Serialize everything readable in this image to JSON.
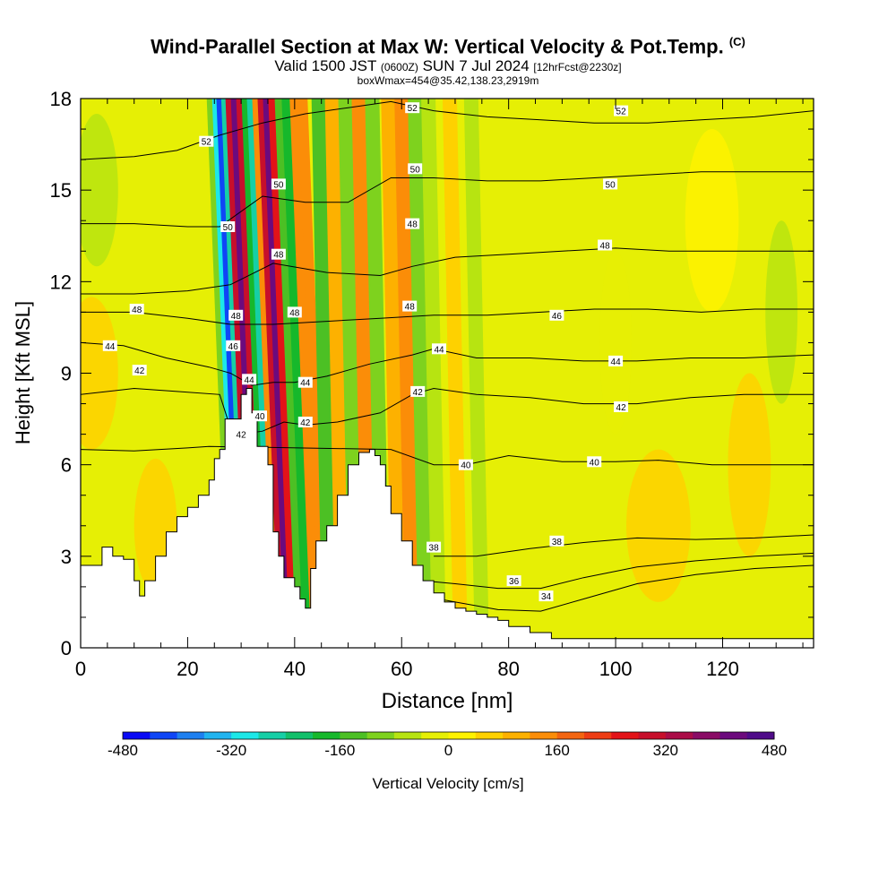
{
  "header": {
    "title": "Wind-Parallel Section at Max W: Vertical Velocity & Pot.Temp.",
    "title_mark": "(C)",
    "subtitle_main_a": "Valid 1500 JST",
    "subtitle_small_a": "(0600Z)",
    "subtitle_main_b": "SUN 7 Jul 2024",
    "subtitle_small_b": "[12hrFcst@2230z]",
    "subtitle2": "boxWmax=454@35.42,138.23,2919m"
  },
  "chart_data": {
    "type": "heatmap",
    "xlabel": "Distance [nm]",
    "ylabel": "Height [Kft MSL]",
    "xlim": [
      0,
      137
    ],
    "ylim": [
      0,
      18
    ],
    "x_ticks": [
      "0",
      "20",
      "40",
      "60",
      "80",
      "100",
      "120"
    ],
    "x_tick_values": [
      0,
      20,
      40,
      60,
      80,
      100,
      120
    ],
    "y_ticks": [
      "0",
      "3",
      "6",
      "9",
      "12",
      "15",
      "18"
    ],
    "y_tick_values": [
      0,
      3,
      6,
      9,
      12,
      15,
      18
    ],
    "background_field": "Vertical Velocity",
    "contour_field": "Potential Temperature",
    "terrain_profile": {
      "x": [
        0,
        4,
        6,
        8,
        10,
        11,
        12,
        14,
        16,
        18,
        20,
        22,
        24,
        25,
        26,
        27,
        28,
        30,
        31,
        32,
        33,
        34,
        35,
        36,
        37,
        38,
        40,
        41,
        42,
        43,
        44,
        46,
        48,
        50,
        52,
        54,
        55,
        56,
        57,
        58,
        60,
        62,
        64,
        66,
        68,
        70,
        72,
        74,
        76,
        78,
        80,
        84,
        88,
        92,
        100,
        110,
        120,
        130,
        137
      ],
      "height_kft": [
        2.7,
        3.3,
        3.0,
        2.9,
        2.2,
        1.7,
        2.2,
        3.0,
        3.8,
        4.3,
        4.6,
        5.0,
        5.5,
        6.2,
        6.5,
        7.5,
        7.5,
        8.3,
        8.5,
        7.7,
        6.6,
        6.6,
        6.0,
        3.8,
        3.0,
        2.3,
        2.0,
        1.6,
        1.3,
        2.6,
        3.5,
        4.0,
        5.0,
        6.0,
        6.4,
        6.5,
        6.3,
        6.0,
        5.3,
        4.4,
        3.5,
        2.7,
        2.2,
        1.8,
        1.5,
        1.3,
        1.2,
        1.1,
        1.0,
        0.9,
        0.7,
        0.5,
        0.3,
        0.3,
        0.3,
        0.3,
        0.3,
        0.3,
        0.3
      ]
    },
    "w_columns": [
      {
        "x": 26.5,
        "cm_s": -100
      },
      {
        "x": 27.5,
        "cm_s": -300
      },
      {
        "x": 28.3,
        "cm_s": -420
      },
      {
        "x": 29.2,
        "cm_s": -280
      },
      {
        "x": 30.0,
        "cm_s": 300
      },
      {
        "x": 31.0,
        "cm_s": 420
      },
      {
        "x": 32.0,
        "cm_s": 280
      },
      {
        "x": 33.0,
        "cm_s": -200
      },
      {
        "x": 34.0,
        "cm_s": -260
      },
      {
        "x": 35.0,
        "cm_s": 150
      },
      {
        "x": 36.0,
        "cm_s": 300
      },
      {
        "x": 37.0,
        "cm_s": 420
      },
      {
        "x": 38.0,
        "cm_s": 250
      },
      {
        "x": 39.2,
        "cm_s": -150
      },
      {
        "x": 40.5,
        "cm_s": -200
      },
      {
        "x": 42.0,
        "cm_s": 150
      },
      {
        "x": 43.5,
        "cm_s": 120
      },
      {
        "x": 45.5,
        "cm_s": -140
      },
      {
        "x": 48.0,
        "cm_s": 100
      },
      {
        "x": 50.5,
        "cm_s": -120
      },
      {
        "x": 53.0,
        "cm_s": 120
      },
      {
        "x": 55.5,
        "cm_s": -100
      },
      {
        "x": 58.5,
        "cm_s": 80
      },
      {
        "x": 61.0,
        "cm_s": 150
      },
      {
        "x": 63.5,
        "cm_s": -100
      },
      {
        "x": 66.0,
        "cm_s": -80
      },
      {
        "x": 70.0,
        "cm_s": 40
      },
      {
        "x": 74.0,
        "cm_s": -50
      }
    ],
    "colorbar": {
      "label": "Vertical Velocity [cm/s]",
      "min": -480,
      "max": 480,
      "tick_labels": [
        "-480",
        "-320",
        "-160",
        "0",
        "160",
        "320",
        "480"
      ],
      "tick_values": [
        -480,
        -320,
        -160,
        0,
        160,
        320,
        480
      ],
      "colors": [
        "#0a0af5",
        "#0f46f6",
        "#1e80f0",
        "#21b4ef",
        "#1ce8e8",
        "#16cfa6",
        "#12c06a",
        "#16b82b",
        "#4cc024",
        "#7ed21e",
        "#b7e411",
        "#e6ef05",
        "#fef200",
        "#fed100",
        "#fdb100",
        "#fb8d08",
        "#f36510",
        "#ee3d14",
        "#e31318",
        "#c70f2b",
        "#ab0c47",
        "#8a0b65",
        "#6c0a7d",
        "#4f0b89"
      ]
    },
    "contours": [
      {
        "level": 34,
        "label": "34",
        "pts": [
          [
            60,
            1.3
          ],
          [
            64,
            1.7
          ],
          [
            70,
            1.5
          ],
          [
            78,
            1.25
          ],
          [
            86,
            1.2
          ],
          [
            94,
            1.6
          ],
          [
            104,
            2.1
          ],
          [
            115,
            2.4
          ],
          [
            126,
            2.6
          ],
          [
            137,
            2.7
          ]
        ]
      },
      {
        "level": 36,
        "label": "36",
        "pts": [
          [
            64,
            2.2
          ],
          [
            70,
            2.1
          ],
          [
            78,
            1.95
          ],
          [
            86,
            1.95
          ],
          [
            94,
            2.3
          ],
          [
            104,
            2.65
          ],
          [
            115,
            2.85
          ],
          [
            126,
            3.0
          ],
          [
            137,
            3.1
          ]
        ]
      },
      {
        "level": 38,
        "label": "38",
        "pts": [
          [
            66,
            3.0
          ],
          [
            74,
            3.0
          ],
          [
            84,
            3.25
          ],
          [
            94,
            3.45
          ],
          [
            104,
            3.6
          ],
          [
            115,
            3.55
          ],
          [
            126,
            3.6
          ],
          [
            137,
            3.7
          ]
        ]
      },
      {
        "level": 40,
        "label": "40",
        "pts": [
          [
            0,
            6.5
          ],
          [
            10,
            6.45
          ],
          [
            20,
            6.55
          ],
          [
            24,
            6.6
          ],
          [
            58,
            6.5
          ],
          [
            66,
            6.0
          ],
          [
            72,
            6.0
          ],
          [
            80,
            6.3
          ],
          [
            90,
            6.1
          ],
          [
            100,
            6.1
          ],
          [
            108,
            6.15
          ],
          [
            118,
            6.0
          ],
          [
            128,
            6.0
          ],
          [
            137,
            6.0
          ]
        ]
      },
      {
        "level": 42,
        "label": "42",
        "pts": [
          [
            0,
            8.3
          ],
          [
            10,
            8.5
          ],
          [
            18,
            8.4
          ],
          [
            26,
            8.3
          ],
          [
            28,
            7.2
          ],
          [
            30,
            7.0
          ],
          [
            34,
            7.1
          ],
          [
            38,
            7.4
          ],
          [
            42,
            7.3
          ],
          [
            48,
            7.4
          ],
          [
            56,
            7.7
          ],
          [
            62,
            8.3
          ],
          [
            66,
            8.5
          ],
          [
            74,
            8.3
          ],
          [
            84,
            8.2
          ],
          [
            94,
            8.0
          ],
          [
            104,
            8.0
          ],
          [
            114,
            8.2
          ],
          [
            124,
            8.3
          ],
          [
            137,
            8.3
          ]
        ]
      },
      {
        "level": 44,
        "label": "44",
        "pts": [
          [
            0,
            10.0
          ],
          [
            8,
            9.9
          ],
          [
            16,
            9.5
          ],
          [
            24,
            9.2
          ],
          [
            28,
            9.0
          ],
          [
            32,
            8.6
          ],
          [
            36,
            8.7
          ],
          [
            40,
            8.7
          ],
          [
            46,
            8.9
          ],
          [
            54,
            9.3
          ],
          [
            62,
            9.6
          ],
          [
            66,
            9.8
          ],
          [
            74,
            9.5
          ],
          [
            84,
            9.5
          ],
          [
            94,
            9.4
          ],
          [
            104,
            9.4
          ],
          [
            114,
            9.5
          ],
          [
            124,
            9.5
          ],
          [
            137,
            9.6
          ]
        ]
      },
      {
        "level": 46,
        "label": "46",
        "pts": [
          [
            0,
            11.0
          ],
          [
            10,
            11.0
          ],
          [
            20,
            10.8
          ],
          [
            28,
            10.6
          ],
          [
            36,
            10.6
          ],
          [
            46,
            10.7
          ],
          [
            56,
            10.8
          ],
          [
            66,
            10.9
          ],
          [
            76,
            10.9
          ],
          [
            86,
            11.0
          ],
          [
            96,
            11.1
          ],
          [
            106,
            11.1
          ],
          [
            116,
            11.0
          ],
          [
            126,
            11.1
          ],
          [
            137,
            11.1
          ]
        ]
      },
      {
        "level": 48,
        "label": "48",
        "pts": [
          [
            0,
            11.6
          ],
          [
            10,
            11.6
          ],
          [
            20,
            11.7
          ],
          [
            28,
            11.9
          ],
          [
            36,
            12.6
          ],
          [
            46,
            12.3
          ],
          [
            56,
            12.2
          ],
          [
            62,
            12.5
          ],
          [
            70,
            12.8
          ],
          [
            80,
            12.9
          ],
          [
            90,
            13.0
          ],
          [
            100,
            13.1
          ],
          [
            110,
            13.0
          ],
          [
            120,
            13.0
          ],
          [
            137,
            13.0
          ]
        ]
      },
      {
        "level": 50,
        "label": "50",
        "pts": [
          [
            0,
            13.9
          ],
          [
            10,
            13.9
          ],
          [
            20,
            13.8
          ],
          [
            26,
            13.8
          ],
          [
            34,
            14.8
          ],
          [
            42,
            14.6
          ],
          [
            50,
            14.6
          ],
          [
            58,
            15.4
          ],
          [
            66,
            15.4
          ],
          [
            76,
            15.3
          ],
          [
            86,
            15.3
          ],
          [
            96,
            15.4
          ],
          [
            106,
            15.5
          ],
          [
            116,
            15.6
          ],
          [
            126,
            15.6
          ],
          [
            137,
            15.6
          ]
        ]
      },
      {
        "level": 52,
        "label": "52",
        "pts": [
          [
            0,
            16.0
          ],
          [
            10,
            16.1
          ],
          [
            18,
            16.3
          ],
          [
            26,
            16.8
          ],
          [
            34,
            17.2
          ],
          [
            42,
            17.5
          ],
          [
            50,
            17.7
          ],
          [
            58,
            17.9
          ],
          [
            66,
            17.6
          ],
          [
            76,
            17.4
          ],
          [
            86,
            17.3
          ],
          [
            96,
            17.2
          ],
          [
            106,
            17.2
          ],
          [
            116,
            17.3
          ],
          [
            126,
            17.4
          ],
          [
            137,
            17.6
          ]
        ]
      }
    ],
    "contour_labels": [
      {
        "text": "34",
        "x": 87,
        "y": 1.7
      },
      {
        "text": "36",
        "x": 81,
        "y": 2.2
      },
      {
        "text": "38",
        "x": 89,
        "y": 3.5
      },
      {
        "text": "38",
        "x": 66,
        "y": 3.3
      },
      {
        "text": "40",
        "x": 72,
        "y": 6.0
      },
      {
        "text": "40",
        "x": 96,
        "y": 6.1
      },
      {
        "text": "40",
        "x": 33.5,
        "y": 7.6
      },
      {
        "text": "42",
        "x": 30,
        "y": 7.0
      },
      {
        "text": "42",
        "x": 42,
        "y": 7.4
      },
      {
        "text": "42",
        "x": 63,
        "y": 8.4
      },
      {
        "text": "42",
        "x": 101,
        "y": 7.9
      },
      {
        "text": "42",
        "x": 11,
        "y": 9.1
      },
      {
        "text": "44",
        "x": 5.5,
        "y": 9.9
      },
      {
        "text": "44",
        "x": 31.5,
        "y": 8.8
      },
      {
        "text": "44",
        "x": 42,
        "y": 8.7
      },
      {
        "text": "44",
        "x": 67,
        "y": 9.8
      },
      {
        "text": "44",
        "x": 100,
        "y": 9.4
      },
      {
        "text": "46",
        "x": 28.5,
        "y": 9.9
      },
      {
        "text": "46",
        "x": 89,
        "y": 10.9
      },
      {
        "text": "48",
        "x": 10.5,
        "y": 11.1
      },
      {
        "text": "48",
        "x": 29,
        "y": 10.9
      },
      {
        "text": "48",
        "x": 40,
        "y": 11.0
      },
      {
        "text": "48",
        "x": 61.5,
        "y": 11.2
      },
      {
        "text": "48",
        "x": 98,
        "y": 13.2
      },
      {
        "text": "48",
        "x": 37,
        "y": 12.9
      },
      {
        "text": "48",
        "x": 62,
        "y": 13.9
      },
      {
        "text": "50",
        "x": 27.5,
        "y": 13.8
      },
      {
        "text": "50",
        "x": 37,
        "y": 15.2
      },
      {
        "text": "50",
        "x": 62.5,
        "y": 15.7
      },
      {
        "text": "50",
        "x": 99,
        "y": 15.2
      },
      {
        "text": "52",
        "x": 23.5,
        "y": 16.6
      },
      {
        "text": "52",
        "x": 62,
        "y": 17.7
      },
      {
        "text": "52",
        "x": 101,
        "y": 17.6
      }
    ]
  }
}
